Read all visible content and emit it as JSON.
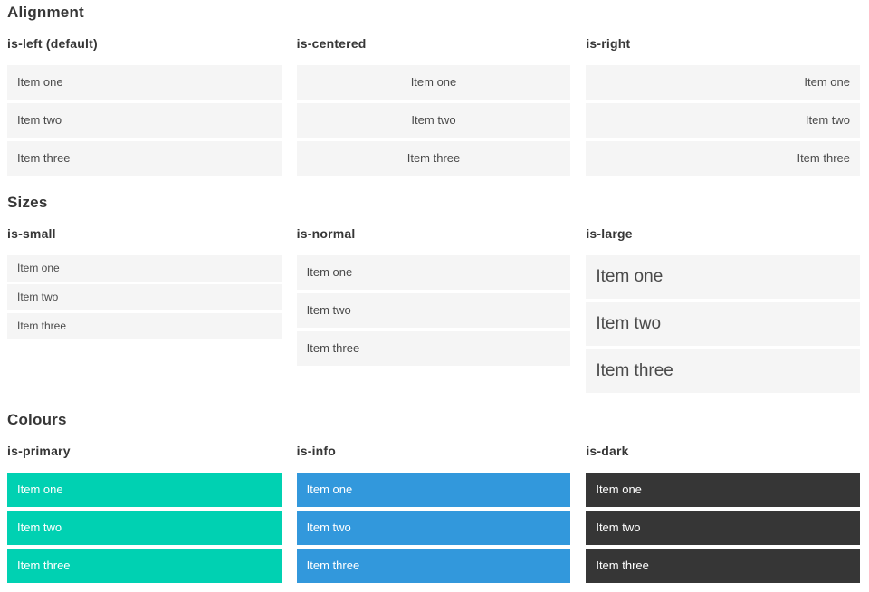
{
  "colors": {
    "primary": "#00d1b2",
    "info": "#3298dc",
    "dark": "#363636",
    "item_background": "#f5f5f5",
    "item_text": "#4a4a4a",
    "heading_text": "#363636",
    "colored_item_text": "#ffffff"
  },
  "sections": [
    {
      "title": "Alignment",
      "groups": [
        {
          "label": "is-left (default)",
          "items": [
            "Item one",
            "Item two",
            "Item three"
          ]
        },
        {
          "label": "is-centered",
          "items": [
            "Item one",
            "Item two",
            "Item three"
          ]
        },
        {
          "label": "is-right",
          "items": [
            "Item one",
            "Item two",
            "Item three"
          ]
        }
      ]
    },
    {
      "title": "Sizes",
      "groups": [
        {
          "label": "is-small",
          "items": [
            "Item one",
            "Item two",
            "Item three"
          ]
        },
        {
          "label": "is-normal",
          "items": [
            "Item one",
            "Item two",
            "Item three"
          ]
        },
        {
          "label": "is-large",
          "items": [
            "Item one",
            "Item two",
            "Item three"
          ]
        }
      ]
    },
    {
      "title": "Colours",
      "groups": [
        {
          "label": "is-primary",
          "items": [
            "Item one",
            "Item two",
            "Item three"
          ]
        },
        {
          "label": "is-info",
          "items": [
            "Item one",
            "Item two",
            "Item three"
          ]
        },
        {
          "label": "is-dark",
          "items": [
            "Item one",
            "Item two",
            "Item three"
          ]
        }
      ]
    }
  ]
}
